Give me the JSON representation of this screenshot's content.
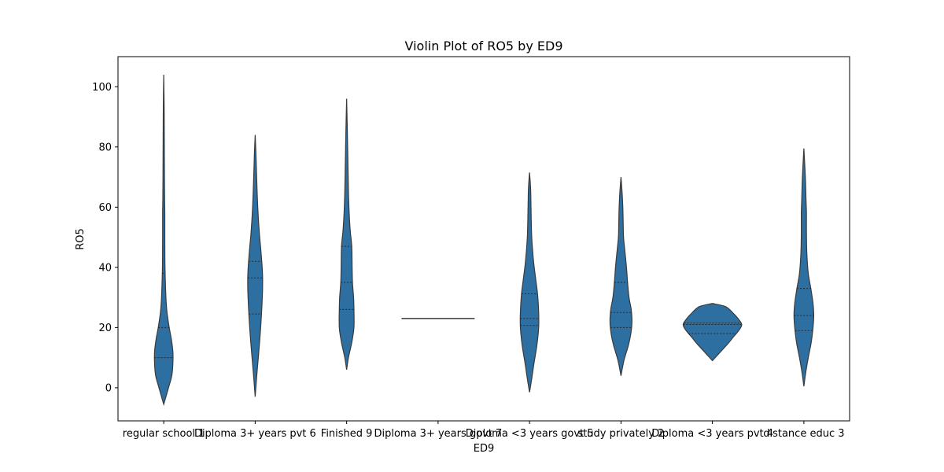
{
  "chart_data": {
    "type": "violin",
    "title": "Violin Plot of RO5 by ED9",
    "xlabel": "ED9",
    "ylabel": "RO5",
    "ylim": [
      -11,
      110
    ],
    "yticks": [
      0,
      20,
      40,
      60,
      80,
      100
    ],
    "grid": false,
    "color": "#2e6fa1",
    "categories": [
      "regular school 1",
      "Diploma 3+ years pvt 6",
      "Finished 9",
      "Diploma 3+ years govt 7",
      "Diploma <3 years govt 5",
      "study privately 2",
      "Diploma <3 years pvt 4",
      "distance educ 3"
    ],
    "violins": [
      {
        "range": [
          -5.5,
          104
        ],
        "quartiles": [
          10,
          20,
          38
        ],
        "profile": [
          [
            -5.5,
            0
          ],
          [
            -3,
            0.06
          ],
          [
            0,
            0.13
          ],
          [
            4,
            0.22
          ],
          [
            8,
            0.25
          ],
          [
            12,
            0.25
          ],
          [
            16,
            0.21
          ],
          [
            20,
            0.15
          ],
          [
            25,
            0.09
          ],
          [
            30,
            0.06
          ],
          [
            40,
            0.035
          ],
          [
            50,
            0.03
          ],
          [
            58,
            0.03
          ],
          [
            62,
            0.025
          ],
          [
            70,
            0.02
          ],
          [
            85,
            0.015
          ],
          [
            95,
            0.01
          ],
          [
            104,
            0
          ]
        ]
      },
      {
        "range": [
          -3,
          84
        ],
        "quartiles": [
          24.5,
          36.5,
          42
        ],
        "profile": [
          [
            -3,
            0
          ],
          [
            5,
            0.05
          ],
          [
            15,
            0.12
          ],
          [
            24,
            0.17
          ],
          [
            32,
            0.2
          ],
          [
            38,
            0.2
          ],
          [
            45,
            0.16
          ],
          [
            52,
            0.11
          ],
          [
            60,
            0.07
          ],
          [
            70,
            0.04
          ],
          [
            78,
            0.02
          ],
          [
            84,
            0
          ]
        ]
      },
      {
        "range": [
          6,
          96
        ],
        "quartiles": [
          26,
          35,
          47
        ],
        "profile": [
          [
            6,
            0
          ],
          [
            10,
            0.05
          ],
          [
            15,
            0.14
          ],
          [
            20,
            0.2
          ],
          [
            26,
            0.2
          ],
          [
            30,
            0.19
          ],
          [
            35,
            0.16
          ],
          [
            40,
            0.15
          ],
          [
            47,
            0.14
          ],
          [
            52,
            0.1
          ],
          [
            58,
            0.07
          ],
          [
            65,
            0.05
          ],
          [
            75,
            0.035
          ],
          [
            85,
            0.02
          ],
          [
            96,
            0
          ]
        ]
      },
      {
        "range": [
          23,
          23
        ],
        "quartiles": [],
        "flat_value": 23
      },
      {
        "range": [
          -1.5,
          71.5
        ],
        "quartiles": [
          20.7,
          23,
          31.2
        ],
        "profile": [
          [
            -1.5,
            0
          ],
          [
            3,
            0.06
          ],
          [
            8,
            0.12
          ],
          [
            14,
            0.2
          ],
          [
            20,
            0.25
          ],
          [
            25,
            0.25
          ],
          [
            31,
            0.22
          ],
          [
            36,
            0.17
          ],
          [
            42,
            0.11
          ],
          [
            50,
            0.06
          ],
          [
            60,
            0.04
          ],
          [
            66,
            0.03
          ],
          [
            71.5,
            0
          ]
        ]
      },
      {
        "range": [
          4,
          70
        ],
        "quartiles": [
          20,
          25,
          35
        ],
        "profile": [
          [
            4,
            0
          ],
          [
            9,
            0.08
          ],
          [
            14,
            0.2
          ],
          [
            18,
            0.27
          ],
          [
            22,
            0.3
          ],
          [
            26,
            0.28
          ],
          [
            30,
            0.22
          ],
          [
            35,
            0.18
          ],
          [
            40,
            0.15
          ],
          [
            45,
            0.11
          ],
          [
            50,
            0.07
          ],
          [
            55,
            0.06
          ],
          [
            60,
            0.05
          ],
          [
            65,
            0.03
          ],
          [
            70,
            0
          ]
        ]
      },
      {
        "range": [
          9,
          28
        ],
        "quartiles": [
          18,
          21,
          21.5
        ],
        "profile": [
          [
            9,
            0
          ],
          [
            11,
            0.15
          ],
          [
            13,
            0.3
          ],
          [
            15,
            0.45
          ],
          [
            17,
            0.58
          ],
          [
            19,
            0.72
          ],
          [
            21,
            0.8
          ],
          [
            23,
            0.7
          ],
          [
            25,
            0.55
          ],
          [
            27,
            0.35
          ],
          [
            28,
            0
          ]
        ]
      },
      {
        "range": [
          0.5,
          79.5
        ],
        "quartiles": [
          19,
          24,
          33
        ],
        "profile": [
          [
            0.5,
            0
          ],
          [
            5,
            0.05
          ],
          [
            10,
            0.12
          ],
          [
            15,
            0.2
          ],
          [
            20,
            0.25
          ],
          [
            24,
            0.27
          ],
          [
            28,
            0.25
          ],
          [
            33,
            0.19
          ],
          [
            38,
            0.12
          ],
          [
            45,
            0.08
          ],
          [
            52,
            0.07
          ],
          [
            58,
            0.07
          ],
          [
            62,
            0.06
          ],
          [
            70,
            0.04
          ],
          [
            79.5,
            0
          ]
        ]
      }
    ]
  }
}
